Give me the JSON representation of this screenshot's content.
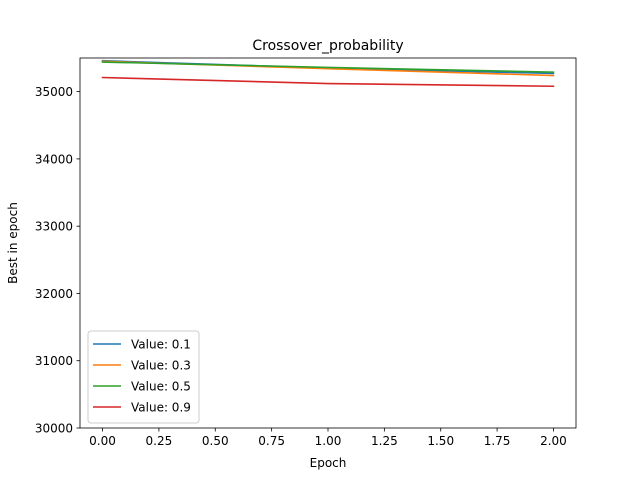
{
  "chart_data": {
    "type": "line",
    "title": "Crossover_probability",
    "xlabel": "Epoch",
    "ylabel": "Best in epoch",
    "xlim": [
      -0.1,
      2.1
    ],
    "ylim": [
      30000,
      35500
    ],
    "x_ticks": [
      0.0,
      0.25,
      0.5,
      0.75,
      1.0,
      1.25,
      1.5,
      1.75,
      2.0
    ],
    "x_tick_labels": [
      "0.00",
      "0.25",
      "0.50",
      "0.75",
      "1.00",
      "1.25",
      "1.50",
      "1.75",
      "2.00"
    ],
    "y_ticks": [
      30000,
      31000,
      32000,
      33000,
      34000,
      35000
    ],
    "y_tick_labels": [
      "30000",
      "31000",
      "32000",
      "33000",
      "34000",
      "35000"
    ],
    "grid": false,
    "legend_position": "bottom-left",
    "x": [
      0,
      1,
      2
    ],
    "series": [
      {
        "name": "Value: 0.1",
        "color": "#1f77b4",
        "values": [
          35460,
          35350,
          35270
        ]
      },
      {
        "name": "Value: 0.3",
        "color": "#ff7f0e",
        "values": [
          35450,
          35340,
          35240
        ]
      },
      {
        "name": "Value: 0.5",
        "color": "#2ca02c",
        "values": [
          35440,
          35360,
          35290
        ]
      },
      {
        "name": "Value: 0.9",
        "color": "#d62728",
        "values": [
          35210,
          35120,
          35080
        ]
      }
    ]
  }
}
